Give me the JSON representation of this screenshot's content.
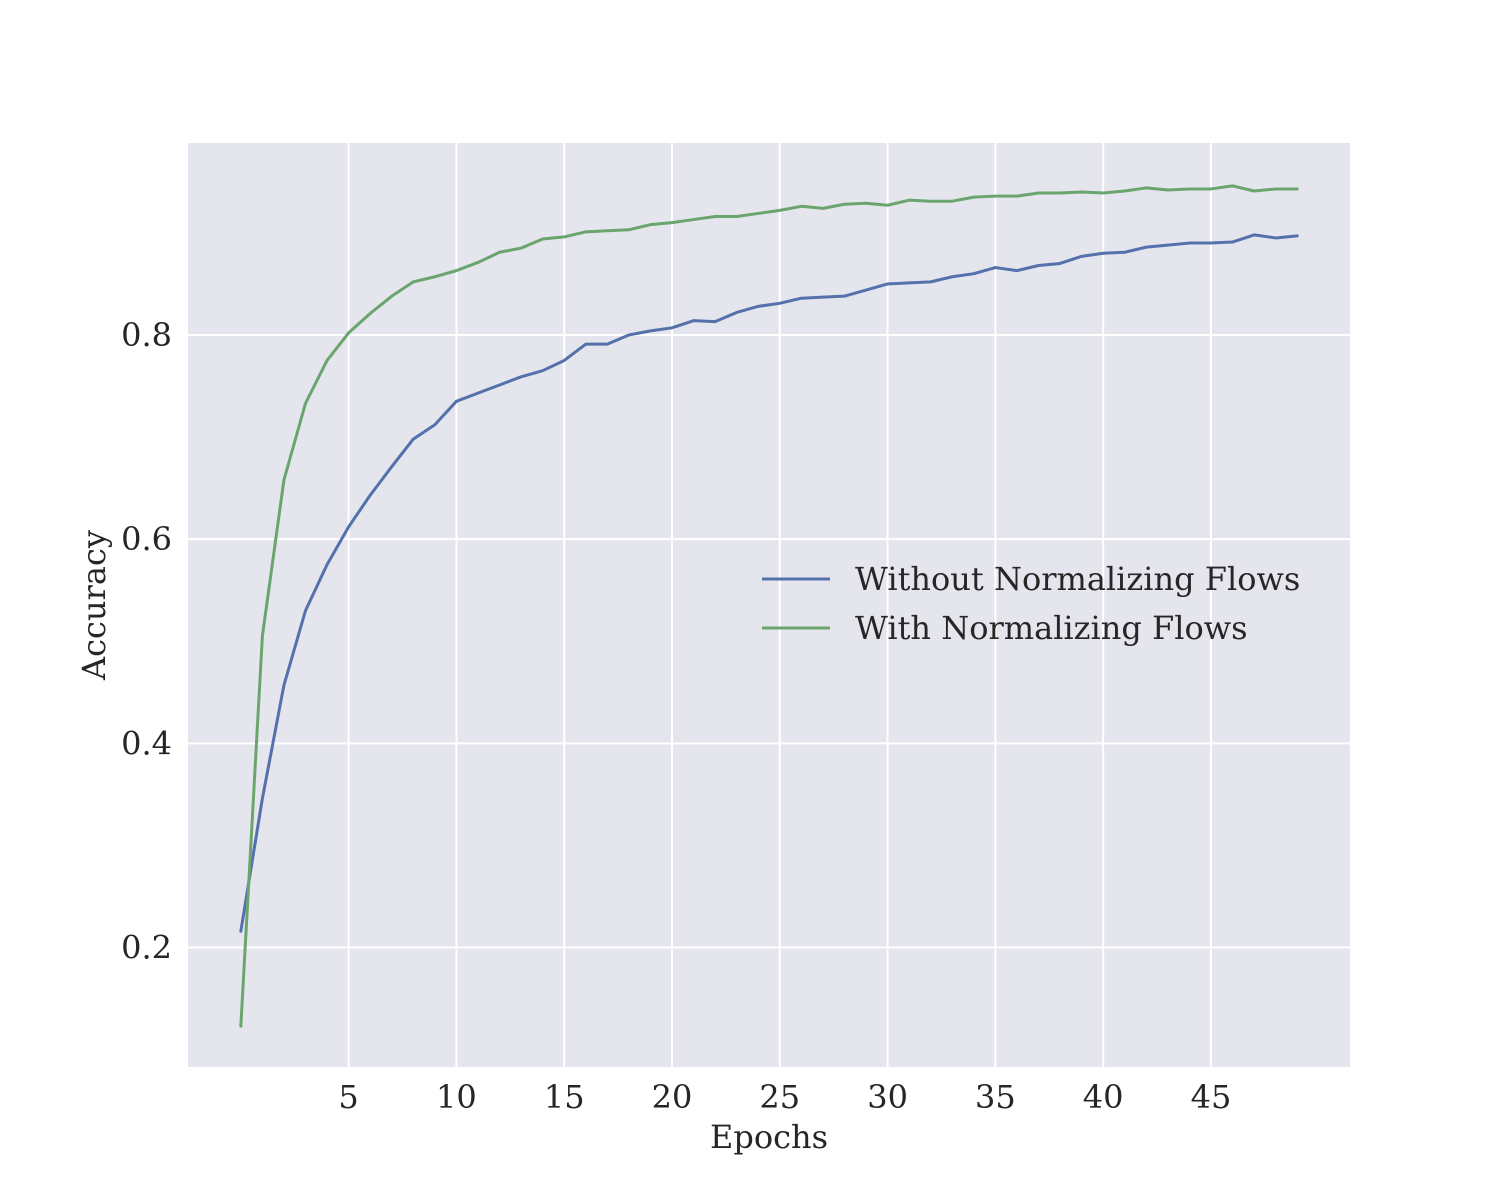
{
  "chart_data": {
    "type": "line",
    "title": "",
    "xlabel": "Epochs",
    "ylabel": "Accuracy",
    "xlim": [
      -2.45,
      51.45
    ],
    "ylim": [
      0.083,
      0.988
    ],
    "xticks": [
      5,
      10,
      15,
      20,
      25,
      30,
      35,
      40,
      45
    ],
    "xtick_labels": [
      "5",
      "10",
      "15",
      "20",
      "25",
      "30",
      "35",
      "40",
      "45"
    ],
    "yticks": [
      0.2,
      0.4,
      0.6,
      0.8
    ],
    "ytick_labels": [
      "0.2",
      "0.4",
      "0.6",
      "0.8"
    ],
    "grid": true,
    "legend": {
      "placement": "center-right"
    },
    "colors": {
      "background": "#e5e5ee",
      "grid": "#ffffff"
    },
    "x": [
      0,
      1,
      2,
      3,
      4,
      5,
      6,
      7,
      8,
      9,
      10,
      11,
      12,
      13,
      14,
      15,
      16,
      17,
      18,
      19,
      20,
      21,
      22,
      23,
      24,
      25,
      26,
      27,
      28,
      29,
      30,
      31,
      32,
      33,
      34,
      35,
      36,
      37,
      38,
      39,
      40,
      41,
      42,
      43,
      44,
      45,
      46,
      47,
      48,
      49
    ],
    "series": [
      {
        "name": "Without Normalizing Flows",
        "color": "#5471ab",
        "values": [
          0.216,
          0.346,
          0.457,
          0.53,
          0.575,
          0.612,
          0.643,
          0.671,
          0.698,
          0.712,
          0.735,
          0.743,
          0.751,
          0.759,
          0.765,
          0.775,
          0.791,
          0.791,
          0.8,
          0.804,
          0.807,
          0.814,
          0.813,
          0.822,
          0.828,
          0.831,
          0.836,
          0.837,
          0.838,
          0.844,
          0.85,
          0.851,
          0.852,
          0.857,
          0.86,
          0.866,
          0.863,
          0.868,
          0.87,
          0.877,
          0.88,
          0.881,
          0.886,
          0.888,
          0.89,
          0.89,
          0.891,
          0.898,
          0.895,
          0.897
        ]
      },
      {
        "name": "With Normalizing Flows",
        "color": "#6aa56e",
        "values": [
          0.123,
          0.505,
          0.658,
          0.733,
          0.775,
          0.802,
          0.821,
          0.838,
          0.852,
          0.857,
          0.863,
          0.871,
          0.881,
          0.885,
          0.894,
          0.896,
          0.901,
          0.902,
          0.903,
          0.908,
          0.91,
          0.913,
          0.916,
          0.916,
          0.919,
          0.922,
          0.926,
          0.924,
          0.928,
          0.929,
          0.927,
          0.932,
          0.931,
          0.931,
          0.935,
          0.936,
          0.936,
          0.939,
          0.939,
          0.94,
          0.939,
          0.941,
          0.944,
          0.942,
          0.943,
          0.943,
          0.946,
          0.941,
          0.943,
          0.943
        ]
      }
    ]
  }
}
